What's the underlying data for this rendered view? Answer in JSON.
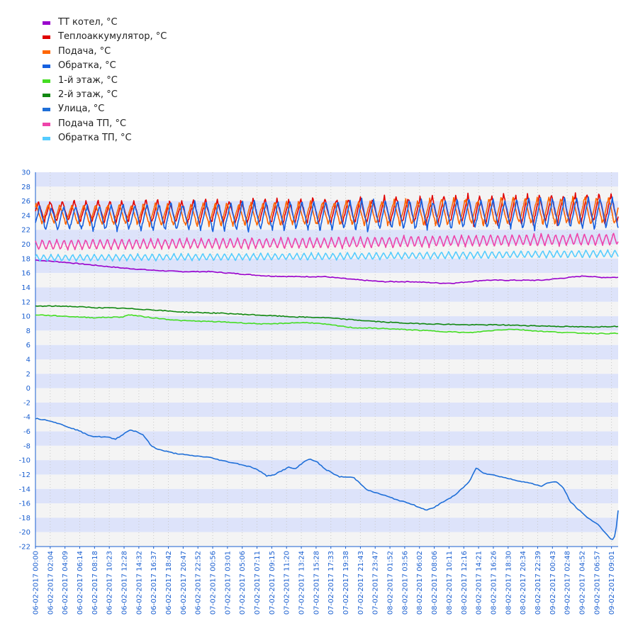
{
  "chart_data": {
    "type": "line",
    "title": "",
    "xlabel": "",
    "ylabel": "",
    "ylim": [
      -22,
      30
    ],
    "y_ticks": [
      30,
      28,
      26,
      24,
      22,
      20,
      18,
      16,
      14,
      12,
      10,
      8,
      6,
      4,
      2,
      0,
      -2,
      -4,
      -6,
      -8,
      -10,
      -12,
      -14,
      -16,
      -18,
      -20,
      -22
    ],
    "x_ticks": [
      "06-02-2017 00:00",
      "06-02-2017 02:04",
      "06-02-2017 04:09",
      "06-02-2017 06:14",
      "06-02-2017 08:18",
      "06-02-2017 10:23",
      "06-02-2017 12:28",
      "06-02-2017 14:32",
      "06-02-2017 16:37",
      "06-02-2017 18:42",
      "06-02-2017 20:47",
      "06-02-2017 22:52",
      "07-02-2017 00:56",
      "07-02-2017 03:01",
      "07-02-2017 05:06",
      "07-02-2017 07:11",
      "07-02-2017 09:15",
      "07-02-2017 11:20",
      "07-02-2017 13:24",
      "07-02-2017 15:28",
      "07-02-2017 17:33",
      "07-02-2017 19:38",
      "07-02-2017 21:43",
      "07-02-2017 23:47",
      "08-02-2017 01:52",
      "08-02-2017 03:56",
      "08-02-2017 06:02",
      "08-02-2017 08:06",
      "08-02-2017 10:11",
      "08-02-2017 12:16",
      "08-02-2017 14:21",
      "08-02-2017 16:26",
      "08-02-2017 18:30",
      "08-02-2017 20:34",
      "08-02-2017 22:39",
      "09-02-2017 00:43",
      "09-02-2017 02:48",
      "09-02-2017 04:52",
      "09-02-2017 06:57",
      "09-02-2017 09:01"
    ],
    "x_range_hours": [
      0,
      80.6
    ],
    "grid": true,
    "legend_position": "top-left",
    "series": [
      {
        "name": "ТТ котел, °C",
        "color": "#9900cc",
        "kind": "smooth",
        "points": [
          [
            0,
            17.8
          ],
          [
            4,
            17.5
          ],
          [
            8,
            17.1
          ],
          [
            12,
            16.7
          ],
          [
            16,
            16.4
          ],
          [
            20,
            16.2
          ],
          [
            24,
            16.2
          ],
          [
            28,
            15.9
          ],
          [
            32,
            15.6
          ],
          [
            36,
            15.5
          ],
          [
            40,
            15.5
          ],
          [
            44,
            15.1
          ],
          [
            48,
            14.8
          ],
          [
            52,
            14.8
          ],
          [
            56,
            14.6
          ],
          [
            58,
            14.6
          ],
          [
            62,
            15.0
          ],
          [
            66,
            15.0
          ],
          [
            70,
            15.0
          ],
          [
            74,
            15.4
          ],
          [
            76,
            15.6
          ],
          [
            78,
            15.4
          ],
          [
            80.6,
            15.4
          ]
        ]
      },
      {
        "name": "Теплоаккумулятор, °C",
        "color": "#e00000",
        "kind": "osc",
        "points": [
          [
            0,
            24.6
          ],
          [
            20,
            24.5
          ],
          [
            40,
            24.6
          ],
          [
            60,
            24.8
          ],
          [
            80.6,
            25.0
          ]
        ],
        "amp": [
          [
            0,
            1.4
          ],
          [
            20,
            1.6
          ],
          [
            40,
            1.7
          ],
          [
            60,
            2.0
          ],
          [
            80.6,
            2.1
          ]
        ],
        "period": 1.65,
        "phase": 0.0
      },
      {
        "name": "Подача, °C",
        "color": "#ff6600",
        "kind": "osc",
        "points": [
          [
            0,
            24.2
          ],
          [
            20,
            24.1
          ],
          [
            40,
            24.3
          ],
          [
            60,
            24.5
          ],
          [
            80.6,
            24.7
          ]
        ],
        "amp": [
          [
            0,
            1.3
          ],
          [
            20,
            1.5
          ],
          [
            40,
            1.6
          ],
          [
            60,
            1.8
          ],
          [
            80.6,
            1.9
          ]
        ],
        "period": 1.65,
        "phase": 0.2
      },
      {
        "name": "Обратка, °C",
        "color": "#1560e0",
        "kind": "osc",
        "points": [
          [
            0,
            23.6
          ],
          [
            20,
            23.8
          ],
          [
            40,
            24.0
          ],
          [
            60,
            24.2
          ],
          [
            80.6,
            24.4
          ]
        ],
        "amp": [
          [
            0,
            1.6
          ],
          [
            20,
            1.9
          ],
          [
            40,
            2.0
          ],
          [
            60,
            2.0
          ],
          [
            80.6,
            2.1
          ]
        ],
        "period": 1.65,
        "phase": 0.9
      },
      {
        "name": "1-й этаж, °C",
        "color": "#44dd22",
        "kind": "smooth",
        "points": [
          [
            0,
            10.2
          ],
          [
            4,
            10.0
          ],
          [
            8,
            9.8
          ],
          [
            12,
            9.9
          ],
          [
            13,
            10.2
          ],
          [
            16,
            9.8
          ],
          [
            20,
            9.4
          ],
          [
            26,
            9.2
          ],
          [
            32,
            8.9
          ],
          [
            36,
            9.1
          ],
          [
            38,
            9.1
          ],
          [
            40,
            8.9
          ],
          [
            44,
            8.4
          ],
          [
            48,
            8.3
          ],
          [
            52,
            8.1
          ],
          [
            56,
            7.9
          ],
          [
            60,
            7.7
          ],
          [
            64,
            8.1
          ],
          [
            66,
            8.2
          ],
          [
            70,
            7.9
          ],
          [
            74,
            7.7
          ],
          [
            78,
            7.6
          ],
          [
            80.6,
            7.6
          ]
        ]
      },
      {
        "name": "2-й этаж, °C",
        "color": "#118811",
        "kind": "smooth",
        "points": [
          [
            0,
            11.4
          ],
          [
            4,
            11.4
          ],
          [
            8,
            11.2
          ],
          [
            12,
            11.1
          ],
          [
            16,
            10.9
          ],
          [
            20,
            10.6
          ],
          [
            26,
            10.4
          ],
          [
            32,
            10.1
          ],
          [
            36,
            9.9
          ],
          [
            40,
            9.8
          ],
          [
            44,
            9.5
          ],
          [
            48,
            9.2
          ],
          [
            52,
            9.0
          ],
          [
            56,
            8.9
          ],
          [
            60,
            8.8
          ],
          [
            64,
            8.8
          ],
          [
            68,
            8.7
          ],
          [
            72,
            8.6
          ],
          [
            76,
            8.5
          ],
          [
            80.6,
            8.6
          ]
        ]
      },
      {
        "name": "Улица, °C",
        "color": "#1f6fd8",
        "kind": "smooth",
        "points": [
          [
            0,
            -4.2
          ],
          [
            2,
            -4.5
          ],
          [
            4,
            -5.2
          ],
          [
            6,
            -5.9
          ],
          [
            7,
            -6.4
          ],
          [
            8,
            -6.7
          ],
          [
            10,
            -6.8
          ],
          [
            11,
            -7.1
          ],
          [
            12,
            -6.5
          ],
          [
            13,
            -5.8
          ],
          [
            14,
            -6.0
          ],
          [
            15,
            -6.6
          ],
          [
            16,
            -8.0
          ],
          [
            17,
            -8.5
          ],
          [
            19,
            -9.0
          ],
          [
            21,
            -9.3
          ],
          [
            24,
            -9.6
          ],
          [
            26,
            -10.1
          ],
          [
            28,
            -10.5
          ],
          [
            30,
            -11.0
          ],
          [
            31,
            -11.5
          ],
          [
            32,
            -12.2
          ],
          [
            33,
            -12.0
          ],
          [
            35,
            -11.0
          ],
          [
            36,
            -11.2
          ],
          [
            37,
            -10.3
          ],
          [
            38,
            -9.8
          ],
          [
            39,
            -10.3
          ],
          [
            40,
            -11.2
          ],
          [
            42,
            -12.3
          ],
          [
            44,
            -12.4
          ],
          [
            46,
            -14.2
          ],
          [
            48,
            -14.8
          ],
          [
            50,
            -15.5
          ],
          [
            52,
            -16.1
          ],
          [
            54,
            -16.9
          ],
          [
            55,
            -16.7
          ],
          [
            56,
            -16.0
          ],
          [
            58,
            -14.9
          ],
          [
            60,
            -13.0
          ],
          [
            61,
            -11.0
          ],
          [
            62,
            -11.8
          ],
          [
            64,
            -12.2
          ],
          [
            66,
            -12.7
          ],
          [
            68,
            -13.1
          ],
          [
            70,
            -13.6
          ],
          [
            71,
            -13.1
          ],
          [
            72,
            -13.0
          ],
          [
            73,
            -13.8
          ],
          [
            74,
            -15.8
          ],
          [
            76,
            -17.7
          ],
          [
            78,
            -19.1
          ],
          [
            79.5,
            -20.9
          ],
          [
            80,
            -21.0
          ],
          [
            80.3,
            -19.8
          ],
          [
            80.6,
            -17.0
          ]
        ]
      },
      {
        "name": "Подача ТП, °C",
        "color": "#ee44aa",
        "kind": "osc",
        "points": [
          [
            0,
            19.9
          ],
          [
            20,
            20.1
          ],
          [
            40,
            20.2
          ],
          [
            60,
            20.5
          ],
          [
            80.6,
            20.7
          ]
        ],
        "amp": [
          [
            0,
            0.7
          ],
          [
            80.6,
            0.8
          ]
        ],
        "period": 1.0,
        "phase": 0.3
      },
      {
        "name": "Обратка ТП, °C",
        "color": "#55ccff",
        "kind": "osc",
        "points": [
          [
            0,
            18.1
          ],
          [
            20,
            18.2
          ],
          [
            40,
            18.3
          ],
          [
            60,
            18.5
          ],
          [
            80.6,
            18.7
          ]
        ],
        "amp": [
          [
            0,
            0.45
          ],
          [
            80.6,
            0.5
          ]
        ],
        "period": 1.0,
        "phase": 0.1
      }
    ]
  }
}
